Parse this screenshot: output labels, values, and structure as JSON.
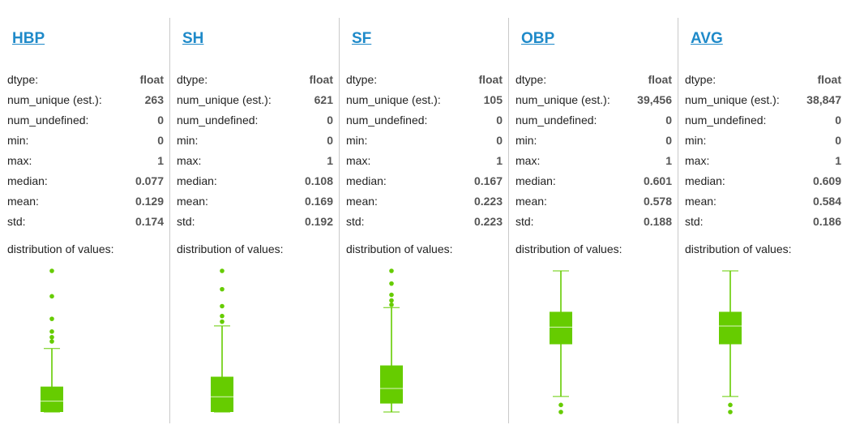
{
  "colors": {
    "link": "#1f8ac9",
    "plot": "#66cc00",
    "divider": "#c9c9c9"
  },
  "stat_labels": {
    "dtype": "dtype:",
    "num_unique": "num_unique (est.):",
    "num_undefined": "num_undefined:",
    "min": "min:",
    "max": "max:",
    "median": "median:",
    "mean": "mean:",
    "std": "std:",
    "distribution": "distribution of values:"
  },
  "columns": [
    {
      "name": "HBP",
      "dtype": "float",
      "num_unique": "263",
      "num_undefined": "0",
      "min": "0",
      "max": "1",
      "median": "0.077",
      "mean": "0.129",
      "std": "0.174"
    },
    {
      "name": "SH",
      "dtype": "float",
      "num_unique": "621",
      "num_undefined": "0",
      "min": "0",
      "max": "1",
      "median": "0.108",
      "mean": "0.169",
      "std": "0.192"
    },
    {
      "name": "SF",
      "dtype": "float",
      "num_unique": "105",
      "num_undefined": "0",
      "min": "0",
      "max": "1",
      "median": "0.167",
      "mean": "0.223",
      "std": "0.223"
    },
    {
      "name": "OBP",
      "dtype": "float",
      "num_unique": "39,456",
      "num_undefined": "0",
      "min": "0",
      "max": "1",
      "median": "0.601",
      "mean": "0.578",
      "std": "0.188"
    },
    {
      "name": "AVG",
      "dtype": "float",
      "num_unique": "38,847",
      "num_undefined": "0",
      "min": "0",
      "max": "1",
      "median": "0.609",
      "mean": "0.584",
      "std": "0.186"
    }
  ],
  "chart_data": [
    {
      "type": "boxplot",
      "series": "HBP",
      "ylim": [
        0,
        1
      ],
      "q1": 0.0,
      "median": 0.077,
      "q3": 0.18,
      "whisker_low": 0.0,
      "whisker_high": 0.45,
      "outliers": [
        0.5,
        0.53,
        0.57,
        0.66,
        0.82,
        1.0
      ]
    },
    {
      "type": "boxplot",
      "series": "SH",
      "ylim": [
        0,
        1
      ],
      "q1": 0.0,
      "median": 0.108,
      "q3": 0.25,
      "whisker_low": 0.0,
      "whisker_high": 0.61,
      "outliers": [
        0.64,
        0.68,
        0.75,
        0.87,
        1.0
      ]
    },
    {
      "type": "boxplot",
      "series": "SF",
      "ylim": [
        0,
        1
      ],
      "q1": 0.06,
      "median": 0.167,
      "q3": 0.33,
      "whisker_low": 0.0,
      "whisker_high": 0.74,
      "outliers": [
        0.76,
        0.79,
        0.83,
        0.91,
        1.0
      ]
    },
    {
      "type": "boxplot",
      "series": "OBP",
      "ylim": [
        0,
        1
      ],
      "q1": 0.48,
      "median": 0.601,
      "q3": 0.71,
      "whisker_low": 0.11,
      "whisker_high": 1.0,
      "outliers": [
        0.0,
        0.05
      ]
    },
    {
      "type": "boxplot",
      "series": "AVG",
      "ylim": [
        0,
        1
      ],
      "q1": 0.48,
      "median": 0.609,
      "q3": 0.71,
      "whisker_low": 0.11,
      "whisker_high": 1.0,
      "outliers": [
        0.0,
        0.05
      ]
    }
  ]
}
